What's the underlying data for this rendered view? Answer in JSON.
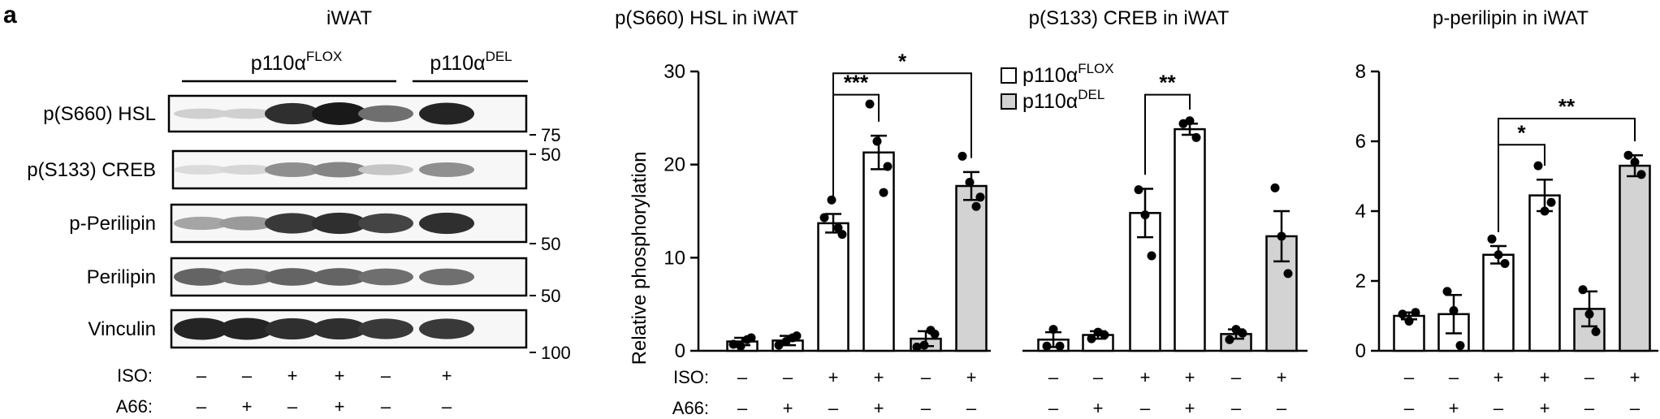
{
  "panel_label": "a",
  "blot": {
    "title": "iWAT",
    "groups": [
      "p110α",
      "p110α"
    ],
    "group_sups": [
      "FLOX",
      "DEL"
    ],
    "rows": [
      "p(S660) HSL",
      "p(S133) CREB",
      "p-Perilipin",
      "Perilipin",
      "Vinculin"
    ],
    "markers": [
      "75",
      "50",
      "50",
      "50",
      "100"
    ],
    "iso_label": "ISO:",
    "a66_label": "A66:",
    "iso": [
      "–",
      "–",
      "+",
      "+",
      "–",
      "+"
    ],
    "a66": [
      "–",
      "+",
      "–",
      "+",
      "–",
      "–"
    ],
    "lane_intensity": [
      [
        0.15,
        0.15,
        0.9,
        1.0,
        0.6,
        0.95
      ],
      [
        0.1,
        0.12,
        0.45,
        0.5,
        0.2,
        0.45
      ],
      [
        0.35,
        0.4,
        0.85,
        0.9,
        0.8,
        0.9
      ],
      [
        0.65,
        0.6,
        0.65,
        0.65,
        0.6,
        0.6
      ],
      [
        0.95,
        0.95,
        0.9,
        0.9,
        0.85,
        0.85
      ]
    ]
  },
  "legend": {
    "entries": [
      "p110α",
      "p110α"
    ],
    "sups": [
      "FLOX",
      "DEL"
    ]
  },
  "colors": {
    "flox": "#ffffff",
    "del": "#d3d3d3",
    "stroke": "#000000"
  },
  "chart_data": [
    {
      "type": "bar",
      "title": "p(S660) HSL in iWAT",
      "ylabel": "Relative phosphorylation",
      "ylim": [
        0,
        30
      ],
      "yticks": [
        "0",
        "10",
        "20",
        "30"
      ],
      "iso": [
        "–",
        "–",
        "+",
        "+",
        "–",
        "+"
      ],
      "a66": [
        "–",
        "+",
        "–",
        "+",
        "–",
        "–"
      ],
      "row_labels": [
        "ISO:",
        "A66:"
      ],
      "genotype": [
        "FLOX",
        "FLOX",
        "FLOX",
        "FLOX",
        "DEL",
        "DEL"
      ],
      "values": [
        1.0,
        1.1,
        13.7,
        21.3,
        1.3,
        17.7
      ],
      "errors": [
        0.4,
        0.5,
        1.0,
        1.8,
        0.8,
        1.5
      ],
      "points": [
        [
          0.7,
          1.4,
          0.5,
          1.2
        ],
        [
          0.6,
          1.6,
          1.0,
          1.4
        ],
        [
          14.3,
          12.5,
          16.2,
          13.2
        ],
        [
          26.5,
          19.8,
          22.5,
          17.0
        ],
        [
          0.4,
          1.8,
          0.6,
          2.2
        ],
        [
          20.9,
          16.5,
          18.1,
          15.5
        ]
      ],
      "significance": [
        {
          "from": 2,
          "to": 3,
          "label": "***",
          "y": 27.5
        },
        {
          "from": 2,
          "to": 5,
          "label": "*",
          "y": 29.8
        }
      ]
    },
    {
      "type": "bar",
      "title": "p(S133) CREB in iWAT",
      "ylim": [
        0,
        30
      ],
      "iso": [
        "–",
        "–",
        "+",
        "+",
        "–",
        "+"
      ],
      "a66": [
        "–",
        "+",
        "–",
        "+",
        "–",
        "–"
      ],
      "genotype": [
        "FLOX",
        "FLOX",
        "FLOX",
        "FLOX",
        "DEL",
        "DEL"
      ],
      "values": [
        1.2,
        1.7,
        14.8,
        23.8,
        1.8,
        12.3
      ],
      "errors": [
        0.8,
        0.4,
        2.6,
        0.6,
        0.5,
        2.7
      ],
      "points": [
        [
          0.5,
          2.3,
          0.5
        ],
        [
          1.3,
          2.0,
          1.7
        ],
        [
          17.3,
          14.6,
          10.2
        ],
        [
          24.4,
          24.7,
          22.9
        ],
        [
          1.2,
          2.3,
          1.9
        ],
        [
          17.5,
          12.3,
          8.3
        ]
      ],
      "significance": [
        {
          "from": 2,
          "to": 3,
          "label": "**",
          "y": 27.5
        }
      ]
    },
    {
      "type": "bar",
      "title": "p-perilipin in iWAT",
      "ylim": [
        0,
        8
      ],
      "yticks": [
        "0",
        "2",
        "4",
        "6",
        "8"
      ],
      "iso": [
        "–",
        "–",
        "+",
        "+",
        "–",
        "+"
      ],
      "a66": [
        "–",
        "+",
        "–",
        "+",
        "–",
        "–"
      ],
      "genotype": [
        "FLOX",
        "FLOX",
        "FLOX",
        "FLOX",
        "DEL",
        "DEL"
      ],
      "values": [
        1.0,
        1.05,
        2.75,
        4.45,
        1.2,
        5.3
      ],
      "errors": [
        0.1,
        0.55,
        0.25,
        0.45,
        0.5,
        0.3
      ],
      "points": [
        [
          1.05,
          0.85,
          1.1
        ],
        [
          1.7,
          1.15,
          0.15
        ],
        [
          3.2,
          2.75,
          2.5
        ],
        [
          5.3,
          4.0,
          4.25
        ],
        [
          1.75,
          1.05,
          0.55
        ],
        [
          5.6,
          5.4,
          5.05
        ]
      ],
      "significance": [
        {
          "from": 2,
          "to": 3,
          "label": "*",
          "y": 5.9
        },
        {
          "from": 2,
          "to": 5,
          "label": "**",
          "y": 6.65
        }
      ]
    }
  ]
}
